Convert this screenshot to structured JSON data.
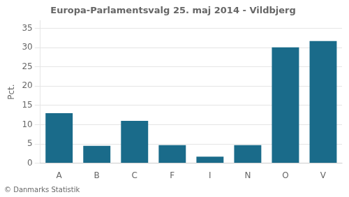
{
  "chart_data": {
    "type": "bar",
    "title": "Europa-Parlamentsvalg 25. maj 2014 - Vildbjerg",
    "ylabel": "Pct.",
    "annotations": [
      "© Danmarks Statistik"
    ],
    "categories": [
      "A",
      "B",
      "C",
      "F",
      "I",
      "N",
      "O",
      "V"
    ],
    "values": [
      13.0,
      4.5,
      11.0,
      4.7,
      1.7,
      4.7,
      30.1,
      31.7
    ],
    "color": "#1a6b8a",
    "ylim": [
      0,
      37
    ],
    "yticks": [
      0,
      5,
      10,
      15,
      20,
      25,
      30,
      35
    ],
    "grid": true
  }
}
